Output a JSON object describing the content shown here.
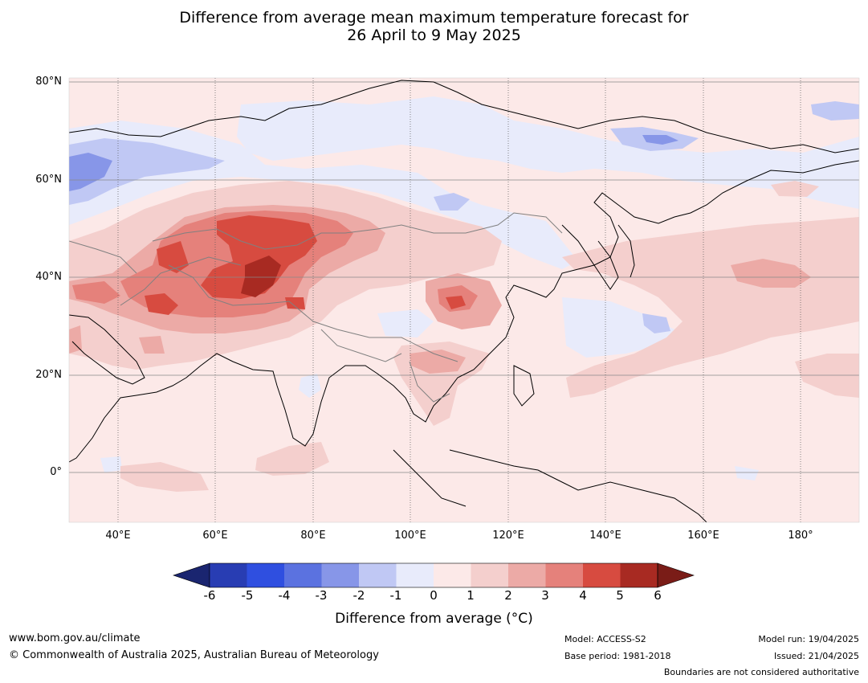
{
  "title": {
    "line1": "Difference from average mean maximum temperature forecast for",
    "line2": "26 April to 9 May 2025"
  },
  "map": {
    "lat_labels": [
      "80°N",
      "60°N",
      "40°N",
      "20°N",
      "0°"
    ],
    "lon_labels": [
      "40°E",
      "60°E",
      "80°E",
      "100°E",
      "120°E",
      "140°E",
      "160°E",
      "180°"
    ],
    "extent": {
      "lon": [
        30,
        190
      ],
      "lat": [
        -10,
        80
      ]
    }
  },
  "colorbar": {
    "ticks": [
      "-6",
      "-5",
      "-4",
      "-3",
      "-2",
      "-1",
      "0",
      "1",
      "2",
      "3",
      "4",
      "5",
      "6"
    ],
    "colors": [
      "#1a2570",
      "#283db3",
      "#2f4fe0",
      "#5b72e0",
      "#8796e8",
      "#c0c8f4",
      "#e8ebfb",
      "#fce9e8",
      "#f4cfcd",
      "#ecaaa6",
      "#e5817b",
      "#d74b40",
      "#a82a22",
      "#7a1c17"
    ],
    "title": "Difference from average (°C)"
  },
  "footer": {
    "website": "www.bom.gov.au/climate",
    "copyright": "© Commonwealth of Australia 2025, Australian Bureau of Meteorology",
    "model": "Model: ACCESS-S2",
    "base_period": "Base period: 1981-2018",
    "model_run": "Model run: 19/04/2025",
    "issued": "Issued: 21/04/2025",
    "disclaimer": "Boundaries are not considered authoritative"
  }
}
